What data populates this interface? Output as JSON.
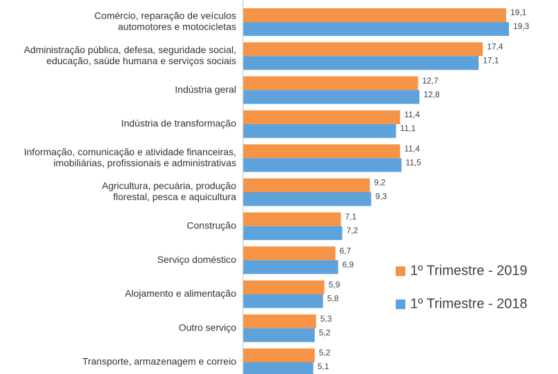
{
  "chart_data": {
    "type": "bar",
    "orientation": "horizontal",
    "legend": "right",
    "categories": [
      [
        "Comércio, reparação de veículos",
        "automotores e motocicletas"
      ],
      [
        "Administração pública, defesa, seguridade social,",
        "educação, saúde humana e serviços sociais"
      ],
      [
        "Indústria geral"
      ],
      [
        "Indústria de transformação"
      ],
      [
        "Informação, comunicação e atividade financeiras,",
        "imobiliárias, profissionais e administrativas"
      ],
      [
        "Agricultura, pecuária, produção",
        "florestal, pesca e aquicultura"
      ],
      [
        "Construção"
      ],
      [
        "Serviço doméstico"
      ],
      [
        "Alojamento e alimentação"
      ],
      [
        "Outro serviço"
      ],
      [
        "Transporte, armazenagem e correio"
      ]
    ],
    "series": [
      {
        "name": "1º Trimestre - 2019",
        "color": "#f59446",
        "values": [
          19.1,
          17.4,
          12.7,
          11.4,
          11.4,
          9.2,
          7.1,
          6.7,
          5.9,
          5.3,
          5.2
        ],
        "value_labels": [
          "19,1",
          "17,4",
          "12,7",
          "11,4",
          "11,4",
          "9,2",
          "7,1",
          "6,7",
          "5,9",
          "5,3",
          "5,2"
        ]
      },
      {
        "name": "1º Trimestre - 2018",
        "color": "#5ea2dc",
        "values": [
          19.3,
          17.1,
          12.8,
          11.1,
          11.5,
          9.3,
          7.2,
          6.9,
          5.8,
          5.2,
          5.1
        ],
        "value_labels": [
          "19,3",
          "17,1",
          "12,8",
          "11,1",
          "11,5",
          "9,3",
          "7,2",
          "6,9",
          "5,8",
          "5,2",
          "5,1"
        ]
      }
    ]
  }
}
